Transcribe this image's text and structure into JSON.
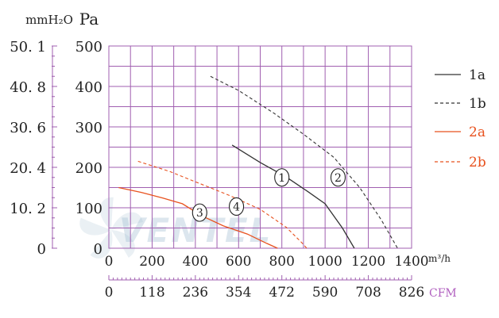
{
  "chart_data": {
    "type": "line",
    "units": {
      "mmh2o": "mmH₂O",
      "pa": "Pa",
      "flow": "m³/h",
      "cfm": "CFM"
    },
    "left_axis_labels": [
      "50. 1",
      "40. 8",
      "30. 6",
      "20. 4",
      "10. 2",
      "0"
    ],
    "y_ticks": [
      500,
      400,
      300,
      200,
      100,
      0
    ],
    "x_ticks": [
      0,
      200,
      400,
      600,
      800,
      1000,
      1200,
      1400
    ],
    "cfm_ticks": [
      0,
      118,
      236,
      354,
      472,
      590,
      708,
      826
    ],
    "xlim": [
      0,
      1400
    ],
    "ylim": [
      0,
      500
    ],
    "series": [
      {
        "name": "1a",
        "color": "#333333",
        "dash": "solid",
        "points": [
          [
            570,
            255
          ],
          [
            700,
            212
          ],
          [
            820,
            176
          ],
          [
            920,
            140
          ],
          [
            1000,
            110
          ],
          [
            1080,
            50
          ],
          [
            1135,
            0
          ]
        ]
      },
      {
        "name": "1b",
        "color": "#333333",
        "dash": "dashed",
        "points": [
          [
            470,
            425
          ],
          [
            600,
            390
          ],
          [
            760,
            335
          ],
          [
            900,
            282
          ],
          [
            1040,
            225
          ],
          [
            1160,
            150
          ],
          [
            1260,
            70
          ],
          [
            1335,
            0
          ]
        ]
      },
      {
        "name": "2a",
        "color": "#e8521f",
        "dash": "solid",
        "points": [
          [
            45,
            150
          ],
          [
            150,
            138
          ],
          [
            250,
            124
          ],
          [
            340,
            110
          ],
          [
            430,
            80
          ],
          [
            530,
            55
          ],
          [
            640,
            35
          ],
          [
            730,
            12
          ],
          [
            780,
            0
          ]
        ]
      },
      {
        "name": "2b",
        "color": "#e8521f",
        "dash": "dashed",
        "points": [
          [
            135,
            215
          ],
          [
            280,
            190
          ],
          [
            420,
            160
          ],
          [
            560,
            130
          ],
          [
            700,
            96
          ],
          [
            820,
            52
          ],
          [
            890,
            15
          ],
          [
            915,
            0
          ]
        ]
      }
    ],
    "markers": [
      {
        "label": "1",
        "x": 800,
        "y": 175
      },
      {
        "label": "2",
        "x": 1060,
        "y": 175
      },
      {
        "label": "3",
        "x": 420,
        "y": 88
      },
      {
        "label": "4",
        "x": 590,
        "y": 103
      }
    ],
    "watermark": "VENTEL"
  }
}
